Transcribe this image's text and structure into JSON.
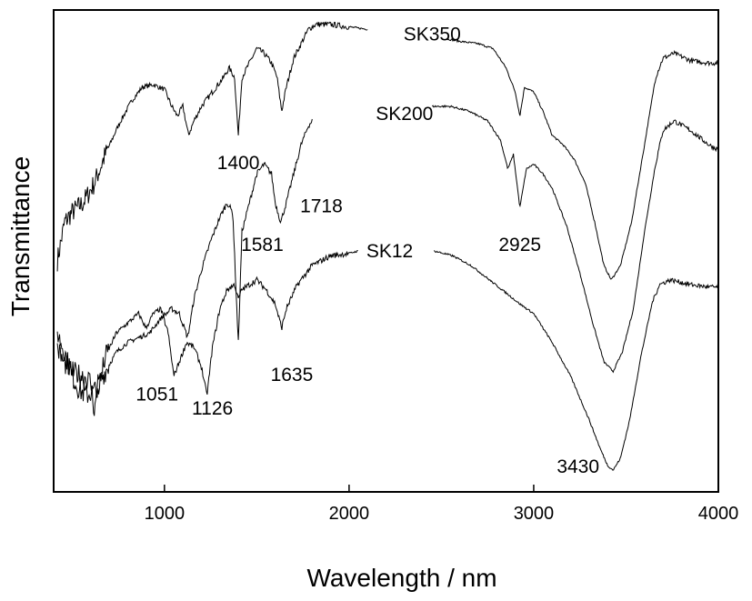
{
  "chart_data": {
    "type": "line",
    "xlabel": "Wavelength / nm",
    "ylabel": "Transmittance",
    "xlim": [
      400,
      4000
    ],
    "ylim": [
      0,
      1
    ],
    "xticks": [
      1000,
      2000,
      3000,
      4000
    ],
    "series": [
      {
        "name": "SK350",
        "label_x": 2450,
        "gap": [
          2100,
          2530
        ],
        "points": [
          [
            420,
            0.48
          ],
          [
            460,
            0.56
          ],
          [
            500,
            0.58
          ],
          [
            560,
            0.6
          ],
          [
            620,
            0.64
          ],
          [
            680,
            0.7
          ],
          [
            750,
            0.76
          ],
          [
            820,
            0.81
          ],
          [
            880,
            0.84
          ],
          [
            940,
            0.845
          ],
          [
            1000,
            0.835
          ],
          [
            1040,
            0.8
          ],
          [
            1070,
            0.78
          ],
          [
            1100,
            0.8
          ],
          [
            1130,
            0.74
          ],
          [
            1160,
            0.77
          ],
          [
            1200,
            0.8
          ],
          [
            1240,
            0.82
          ],
          [
            1280,
            0.84
          ],
          [
            1320,
            0.86
          ],
          [
            1350,
            0.88
          ],
          [
            1380,
            0.86
          ],
          [
            1400,
            0.74
          ],
          [
            1420,
            0.86
          ],
          [
            1460,
            0.89
          ],
          [
            1500,
            0.92
          ],
          [
            1540,
            0.91
          ],
          [
            1580,
            0.89
          ],
          [
            1610,
            0.86
          ],
          [
            1635,
            0.79
          ],
          [
            1660,
            0.84
          ],
          [
            1700,
            0.9
          ],
          [
            1740,
            0.93
          ],
          [
            1780,
            0.96
          ],
          [
            1820,
            0.97
          ],
          [
            1900,
            0.97
          ],
          [
            2000,
            0.965
          ],
          [
            2100,
            0.96
          ],
          [
            2530,
            0.94
          ],
          [
            2600,
            0.935
          ],
          [
            2700,
            0.93
          ],
          [
            2780,
            0.92
          ],
          [
            2850,
            0.88
          ],
          [
            2900,
            0.83
          ],
          [
            2925,
            0.78
          ],
          [
            2950,
            0.84
          ],
          [
            3000,
            0.83
          ],
          [
            3050,
            0.79
          ],
          [
            3100,
            0.74
          ],
          [
            3160,
            0.72
          ],
          [
            3220,
            0.69
          ],
          [
            3280,
            0.64
          ],
          [
            3330,
            0.56
          ],
          [
            3380,
            0.47
          ],
          [
            3420,
            0.44
          ],
          [
            3470,
            0.47
          ],
          [
            3530,
            0.56
          ],
          [
            3600,
            0.72
          ],
          [
            3660,
            0.86
          ],
          [
            3700,
            0.9
          ],
          [
            3760,
            0.91
          ],
          [
            3850,
            0.895
          ],
          [
            3950,
            0.89
          ],
          [
            4000,
            0.89
          ]
        ]
      },
      {
        "name": "SK200",
        "label_x": 2300,
        "gap": [
          1800,
          2450
        ],
        "points": [
          [
            420,
            0.33
          ],
          [
            460,
            0.29
          ],
          [
            500,
            0.24
          ],
          [
            540,
            0.21
          ],
          [
            580,
            0.2
          ],
          [
            620,
            0.21
          ],
          [
            680,
            0.25
          ],
          [
            740,
            0.29
          ],
          [
            800,
            0.31
          ],
          [
            860,
            0.32
          ],
          [
            920,
            0.33
          ],
          [
            980,
            0.36
          ],
          [
            1040,
            0.38
          ],
          [
            1080,
            0.37
          ],
          [
            1126,
            0.32
          ],
          [
            1160,
            0.4
          ],
          [
            1200,
            0.46
          ],
          [
            1250,
            0.52
          ],
          [
            1300,
            0.57
          ],
          [
            1340,
            0.6
          ],
          [
            1370,
            0.58
          ],
          [
            1400,
            0.31
          ],
          [
            1420,
            0.54
          ],
          [
            1460,
            0.6
          ],
          [
            1500,
            0.66
          ],
          [
            1540,
            0.68
          ],
          [
            1580,
            0.66
          ],
          [
            1600,
            0.6
          ],
          [
            1630,
            0.56
          ],
          [
            1660,
            0.6
          ],
          [
            1700,
            0.66
          ],
          [
            1740,
            0.72
          ],
          [
            1780,
            0.76
          ],
          [
            1800,
            0.77
          ],
          [
            2450,
            0.8
          ],
          [
            2550,
            0.8
          ],
          [
            2650,
            0.79
          ],
          [
            2750,
            0.77
          ],
          [
            2820,
            0.73
          ],
          [
            2860,
            0.67
          ],
          [
            2890,
            0.7
          ],
          [
            2925,
            0.59
          ],
          [
            2960,
            0.67
          ],
          [
            3000,
            0.68
          ],
          [
            3050,
            0.66
          ],
          [
            3100,
            0.63
          ],
          [
            3180,
            0.55
          ],
          [
            3260,
            0.44
          ],
          [
            3320,
            0.35
          ],
          [
            3380,
            0.27
          ],
          [
            3430,
            0.25
          ],
          [
            3480,
            0.29
          ],
          [
            3540,
            0.38
          ],
          [
            3600,
            0.54
          ],
          [
            3660,
            0.68
          ],
          [
            3700,
            0.75
          ],
          [
            3760,
            0.77
          ],
          [
            3850,
            0.75
          ],
          [
            3950,
            0.72
          ],
          [
            4000,
            0.71
          ]
        ]
      },
      {
        "name": "SK12",
        "label_x": 2220,
        "gap": [
          2050,
          2460
        ],
        "points": [
          [
            420,
            0.3
          ],
          [
            450,
            0.27
          ],
          [
            500,
            0.25
          ],
          [
            560,
            0.24
          ],
          [
            600,
            0.23
          ],
          [
            620,
            0.17
          ],
          [
            640,
            0.21
          ],
          [
            680,
            0.28
          ],
          [
            740,
            0.33
          ],
          [
            800,
            0.35
          ],
          [
            860,
            0.37
          ],
          [
            900,
            0.34
          ],
          [
            940,
            0.37
          ],
          [
            980,
            0.38
          ],
          [
            1020,
            0.33
          ],
          [
            1051,
            0.24
          ],
          [
            1080,
            0.27
          ],
          [
            1120,
            0.31
          ],
          [
            1160,
            0.3
          ],
          [
            1200,
            0.26
          ],
          [
            1230,
            0.2
          ],
          [
            1260,
            0.3
          ],
          [
            1300,
            0.38
          ],
          [
            1340,
            0.42
          ],
          [
            1380,
            0.43
          ],
          [
            1400,
            0.4
          ],
          [
            1420,
            0.42
          ],
          [
            1460,
            0.43
          ],
          [
            1500,
            0.44
          ],
          [
            1550,
            0.42
          ],
          [
            1600,
            0.39
          ],
          [
            1635,
            0.34
          ],
          [
            1660,
            0.38
          ],
          [
            1720,
            0.43
          ],
          [
            1800,
            0.47
          ],
          [
            1900,
            0.49
          ],
          [
            2000,
            0.495
          ],
          [
            2050,
            0.5
          ],
          [
            2460,
            0.5
          ],
          [
            2560,
            0.49
          ],
          [
            2660,
            0.47
          ],
          [
            2760,
            0.44
          ],
          [
            2860,
            0.41
          ],
          [
            2925,
            0.39
          ],
          [
            3000,
            0.37
          ],
          [
            3100,
            0.31
          ],
          [
            3200,
            0.24
          ],
          [
            3300,
            0.15
          ],
          [
            3360,
            0.09
          ],
          [
            3400,
            0.055
          ],
          [
            3430,
            0.045
          ],
          [
            3470,
            0.07
          ],
          [
            3520,
            0.15
          ],
          [
            3580,
            0.28
          ],
          [
            3640,
            0.39
          ],
          [
            3680,
            0.43
          ],
          [
            3740,
            0.44
          ],
          [
            3850,
            0.43
          ],
          [
            3950,
            0.425
          ],
          [
            4000,
            0.425
          ]
        ]
      }
    ],
    "annotations": [
      {
        "text": "1400",
        "x": 1400,
        "y": 0.67
      },
      {
        "text": "1718",
        "x": 1850,
        "y": 0.58
      },
      {
        "text": "1581",
        "x": 1530,
        "y": 0.5
      },
      {
        "text": "2925",
        "x": 2925,
        "y": 0.5
      },
      {
        "text": "1635",
        "x": 1690,
        "y": 0.23
      },
      {
        "text": "1051",
        "x": 960,
        "y": 0.19
      },
      {
        "text": "1126",
        "x": 1260,
        "y": 0.16
      },
      {
        "text": "3430",
        "x": 3240,
        "y": 0.04
      }
    ]
  }
}
